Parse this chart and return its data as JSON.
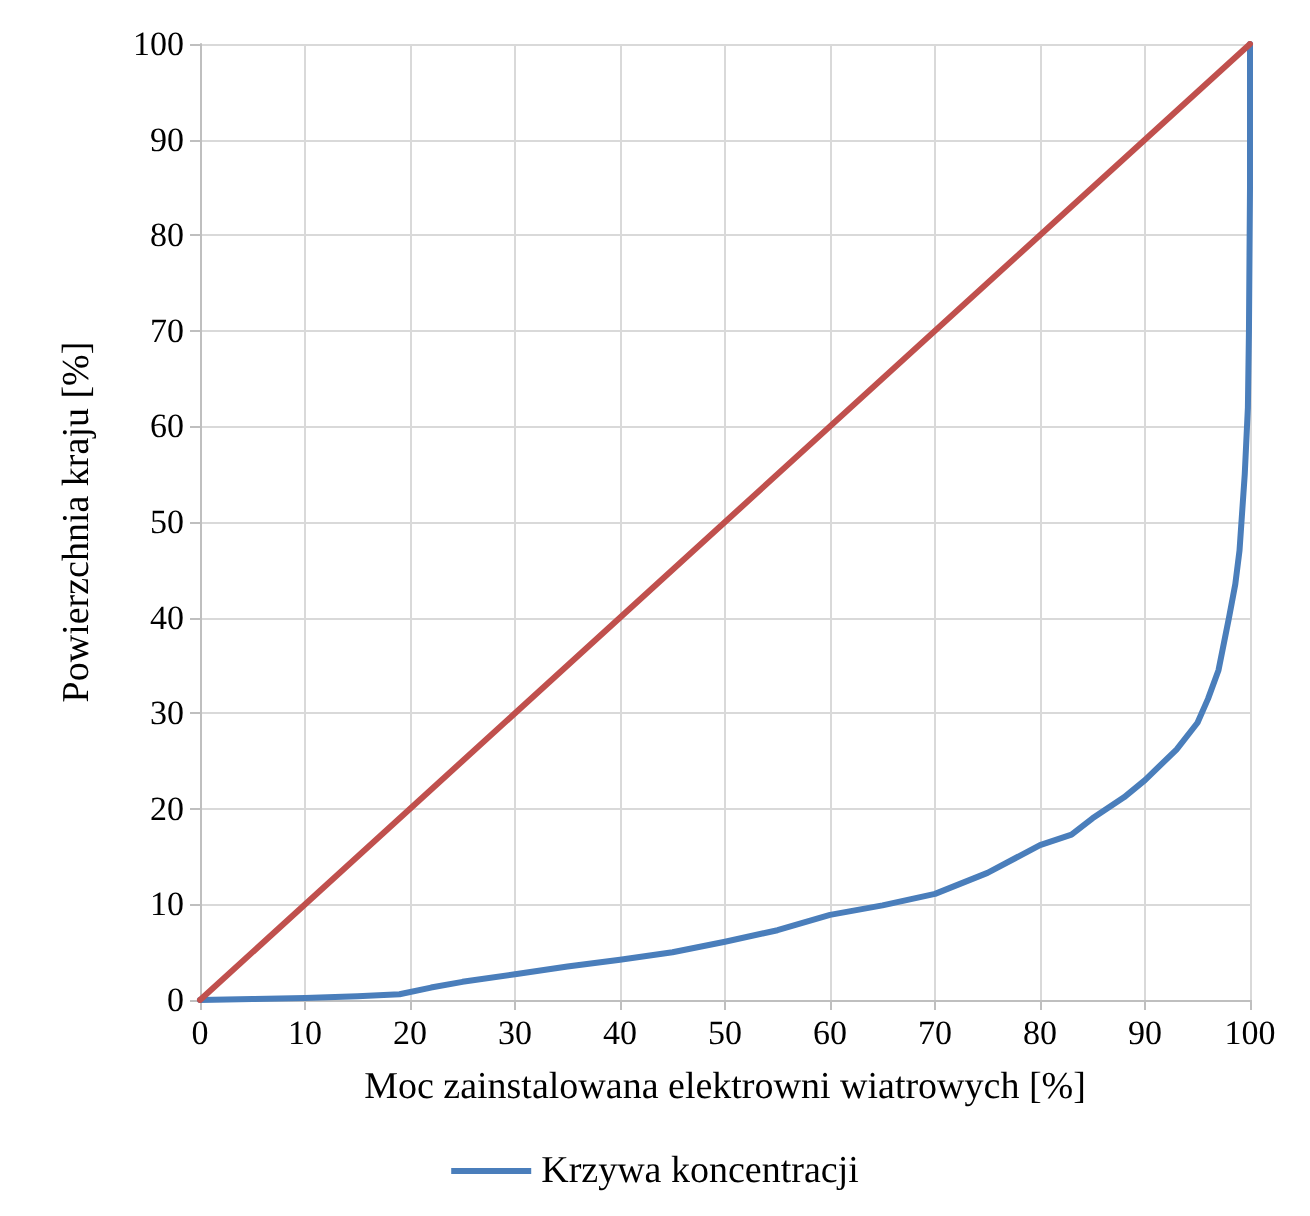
{
  "chart_data": {
    "type": "line",
    "xlabel": "Moc zainstalowana elektrowni wiatrowych [%]",
    "ylabel": "Powierzchnia kraju [%]",
    "xlim": [
      0,
      100
    ],
    "ylim": [
      0,
      100
    ],
    "xticks": [
      0,
      10,
      20,
      30,
      40,
      50,
      60,
      70,
      80,
      90,
      100
    ],
    "yticks": [
      0,
      10,
      20,
      30,
      40,
      50,
      60,
      70,
      80,
      90,
      100
    ],
    "grid": true,
    "legend": "bottom",
    "marker": "none",
    "line_style": "solid",
    "series": [
      {
        "name": "Krzywa koncentracji",
        "color": "#4a7ebb",
        "x": [
          0,
          5,
          10,
          15,
          19,
          22,
          25,
          30,
          35,
          40,
          45,
          50,
          55,
          60,
          65,
          70,
          75,
          80,
          83,
          85,
          88,
          90,
          93,
          95,
          96,
          97,
          98,
          98.6,
          99,
          99.5,
          99.8,
          99.9,
          100,
          100
        ],
        "values": [
          0,
          0.1,
          0.2,
          0.4,
          0.6,
          1.3,
          1.9,
          2.7,
          3.5,
          4.2,
          5,
          6.1,
          7.3,
          8.9,
          9.9,
          11.1,
          13.3,
          16.2,
          17.3,
          19,
          21.2,
          23,
          26.2,
          29,
          31.5,
          34.5,
          40,
          43.5,
          47,
          55,
          62,
          70,
          85,
          100
        ]
      },
      {
        "color": "#c0504d",
        "x": [
          0,
          100
        ],
        "values": [
          0,
          100
        ]
      }
    ]
  }
}
